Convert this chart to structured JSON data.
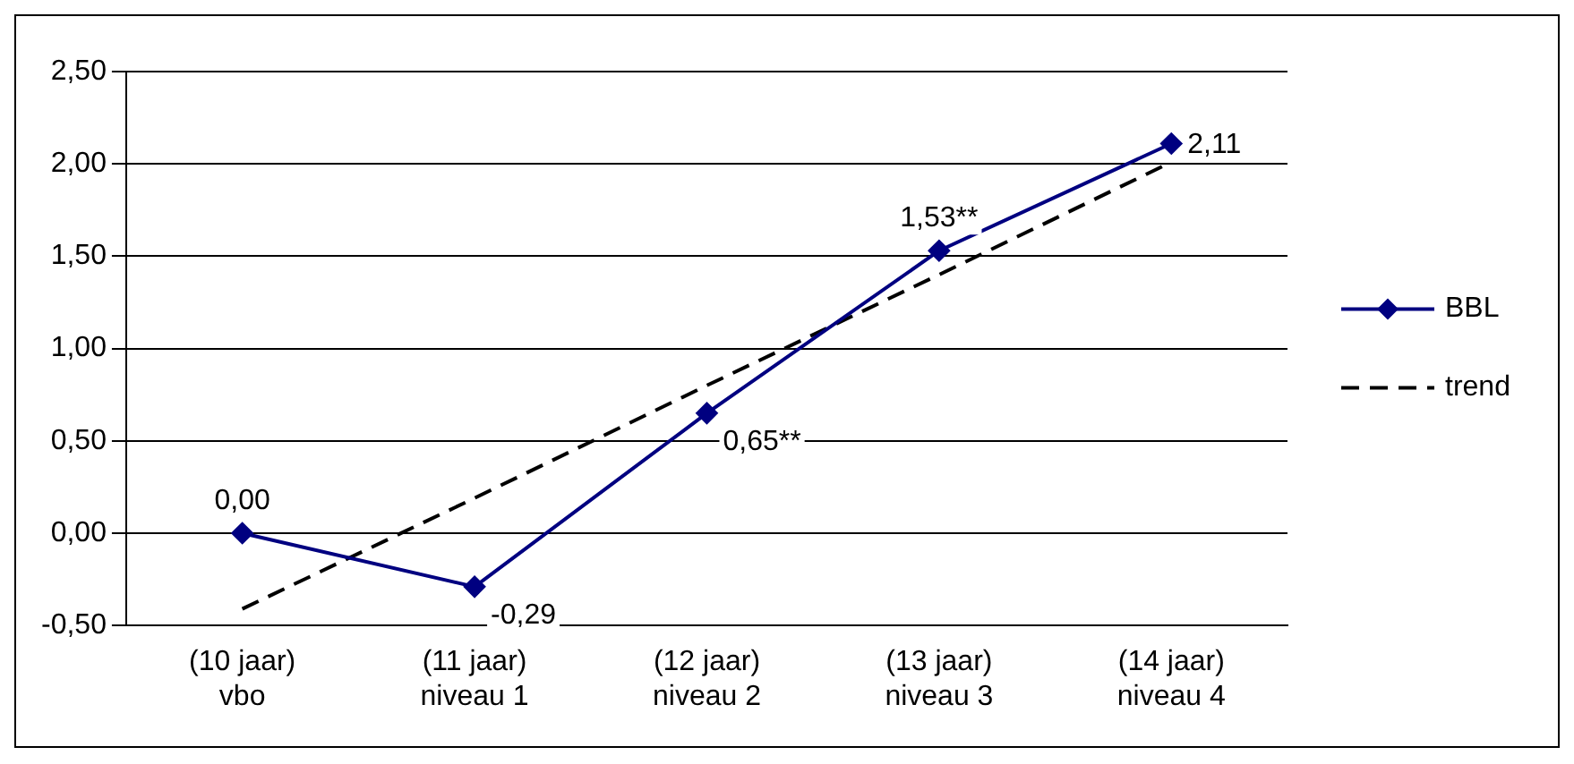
{
  "chart_data": {
    "type": "line",
    "categories": [
      "(10 jaar)\nvbo",
      "(11 jaar)\nniveau 1",
      "(12 jaar)\nniveau 2",
      "(13 jaar)\nniveau 3",
      "(14 jaar)\nniveau 4"
    ],
    "series": [
      {
        "name": "BBL",
        "color": "#000080",
        "values": [
          0.0,
          -0.29,
          0.65,
          1.53,
          2.11
        ],
        "marker": "diamond",
        "line_style": "solid",
        "value_labels": [
          "0,00",
          "-0,29",
          "0,65**",
          "1,53**",
          "2,11"
        ]
      },
      {
        "name": "trend",
        "type": "line",
        "color": "#000000",
        "values": [
          -0.41,
          0.19,
          0.8,
          1.4,
          2.01
        ],
        "marker": "none",
        "line_style": "dashed"
      }
    ],
    "ylim": [
      -0.5,
      2.5
    ],
    "yticks": [
      {
        "value": -0.5,
        "label": "-0,50"
      },
      {
        "value": 0,
        "label": "0,00"
      },
      {
        "value": 0.5,
        "label": "0,50"
      },
      {
        "value": 1,
        "label": "1,00"
      },
      {
        "value": 1.5,
        "label": "1,50"
      },
      {
        "value": 2,
        "label": "2,00"
      },
      {
        "value": 2.5,
        "label": "2,50"
      }
    ],
    "grid": "y",
    "legend": "right"
  }
}
